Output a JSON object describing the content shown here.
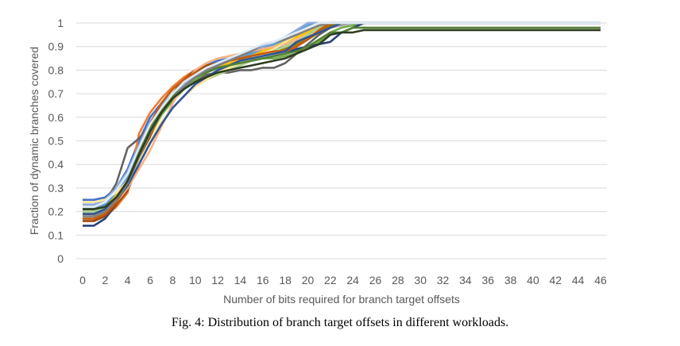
{
  "caption": "Fig. 4: Distribution of branch target offsets in different workloads.",
  "chart_data": {
    "type": "line",
    "title": "",
    "xlabel": "Number of bits required for branch target offsets",
    "ylabel": "Fraction of dynamic branches covered",
    "xlim": [
      0,
      46
    ],
    "ylim": [
      0,
      1
    ],
    "x_ticks": [
      0,
      2,
      4,
      6,
      8,
      10,
      12,
      14,
      16,
      18,
      20,
      22,
      24,
      26,
      28,
      30,
      32,
      34,
      36,
      38,
      40,
      42,
      44,
      46
    ],
    "y_ticks": [
      0,
      0.1,
      0.2,
      0.3,
      0.4,
      0.5,
      0.6,
      0.7,
      0.8,
      0.9,
      1
    ],
    "y_tick_labels": [
      "0",
      "0.1",
      "0.2",
      "0.3",
      "0.4",
      "0.5",
      "0.6",
      "0.7",
      "0.8",
      "0.9",
      "1"
    ],
    "grid": "horizontal",
    "legend": "none",
    "x": [
      0,
      1,
      2,
      3,
      4,
      5,
      6,
      7,
      8,
      9,
      10,
      11,
      12,
      13,
      14,
      15,
      16,
      17,
      18,
      19,
      20,
      21,
      22,
      23,
      24,
      25,
      26,
      46
    ],
    "series": [
      {
        "color": "#4472C4",
        "values": [
          0.25,
          0.25,
          0.26,
          0.3,
          0.38,
          0.5,
          0.6,
          0.66,
          0.72,
          0.76,
          0.79,
          0.82,
          0.84,
          0.85,
          0.86,
          0.88,
          0.9,
          0.9,
          0.92,
          0.96,
          1.0,
          1.0,
          1.0,
          1.0,
          1.0,
          1.0,
          1.0,
          1.0
        ]
      },
      {
        "color": "#ED7D31",
        "values": [
          0.16,
          0.16,
          0.18,
          0.22,
          0.28,
          0.53,
          0.62,
          0.68,
          0.73,
          0.77,
          0.8,
          0.82,
          0.83,
          0.84,
          0.85,
          0.86,
          0.87,
          0.88,
          0.9,
          0.92,
          0.94,
          0.97,
          1.0,
          1.0,
          1.0,
          1.0,
          1.0,
          1.0
        ]
      },
      {
        "color": "#A5A5A5",
        "values": [
          0.2,
          0.2,
          0.22,
          0.27,
          0.34,
          0.44,
          0.54,
          0.62,
          0.68,
          0.73,
          0.77,
          0.8,
          0.82,
          0.84,
          0.85,
          0.87,
          0.88,
          0.89,
          0.9,
          0.92,
          0.94,
          0.96,
          0.98,
          0.99,
          1.0,
          1.0,
          1.0,
          1.0
        ]
      },
      {
        "color": "#FFC000",
        "values": [
          0.22,
          0.22,
          0.23,
          0.27,
          0.33,
          0.42,
          0.52,
          0.61,
          0.67,
          0.72,
          0.76,
          0.79,
          0.81,
          0.83,
          0.84,
          0.86,
          0.88,
          0.9,
          0.92,
          0.94,
          0.96,
          0.98,
          1.0,
          1.0,
          1.0,
          1.0,
          1.0,
          1.0
        ]
      },
      {
        "color": "#5B9BD5",
        "values": [
          0.21,
          0.21,
          0.23,
          0.28,
          0.35,
          0.46,
          0.56,
          0.63,
          0.69,
          0.74,
          0.77,
          0.8,
          0.82,
          0.84,
          0.86,
          0.87,
          0.89,
          0.91,
          0.93,
          0.96,
          0.99,
          1.0,
          1.0,
          1.0,
          1.0,
          1.0,
          1.0,
          1.0
        ]
      },
      {
        "color": "#70AD47",
        "values": [
          0.17,
          0.17,
          0.19,
          0.24,
          0.31,
          0.43,
          0.53,
          0.61,
          0.67,
          0.72,
          0.76,
          0.79,
          0.81,
          0.82,
          0.83,
          0.84,
          0.85,
          0.85,
          0.86,
          0.87,
          0.89,
          0.92,
          0.96,
          0.98,
          0.99,
          1.0,
          1.0,
          1.0
        ]
      },
      {
        "color": "#264478",
        "values": [
          0.14,
          0.14,
          0.17,
          0.23,
          0.32,
          0.44,
          0.55,
          0.63,
          0.69,
          0.73,
          0.77,
          0.8,
          0.81,
          0.82,
          0.83,
          0.84,
          0.85,
          0.86,
          0.87,
          0.89,
          0.9,
          0.91,
          0.92,
          0.96,
          0.98,
          1.0,
          1.0,
          1.0
        ]
      },
      {
        "color": "#9E480E",
        "values": [
          0.16,
          0.16,
          0.18,
          0.23,
          0.29,
          0.4,
          0.52,
          0.63,
          0.7,
          0.76,
          0.8,
          0.82,
          0.83,
          0.84,
          0.85,
          0.86,
          0.87,
          0.87,
          0.88,
          0.9,
          0.93,
          0.97,
          1.0,
          1.0,
          1.0,
          1.0,
          1.0,
          1.0
        ]
      },
      {
        "color": "#636363",
        "values": [
          0.22,
          0.22,
          0.24,
          0.32,
          0.47,
          0.51,
          0.57,
          0.63,
          0.68,
          0.72,
          0.75,
          0.78,
          0.79,
          0.79,
          0.8,
          0.8,
          0.81,
          0.81,
          0.83,
          0.87,
          0.91,
          0.95,
          0.98,
          1.0,
          1.0,
          1.0,
          1.0,
          1.0
        ]
      },
      {
        "color": "#997300",
        "values": [
          0.19,
          0.19,
          0.21,
          0.26,
          0.33,
          0.45,
          0.56,
          0.64,
          0.7,
          0.74,
          0.78,
          0.81,
          0.83,
          0.84,
          0.85,
          0.86,
          0.87,
          0.88,
          0.89,
          0.91,
          0.93,
          0.96,
          0.99,
          1.0,
          1.0,
          1.0,
          1.0,
          1.0
        ]
      },
      {
        "color": "#F4B183",
        "values": [
          0.18,
          0.18,
          0.2,
          0.24,
          0.3,
          0.38,
          0.46,
          0.56,
          0.66,
          0.74,
          0.8,
          0.83,
          0.85,
          0.86,
          0.87,
          0.88,
          0.89,
          0.9,
          0.91,
          0.93,
          0.95,
          0.97,
          1.0,
          1.0,
          1.0,
          1.0,
          1.0,
          1.0
        ]
      },
      {
        "color": "#8FAADC",
        "values": [
          0.23,
          0.23,
          0.25,
          0.3,
          0.37,
          0.48,
          0.58,
          0.65,
          0.7,
          0.74,
          0.77,
          0.8,
          0.82,
          0.84,
          0.86,
          0.88,
          0.9,
          0.92,
          0.94,
          0.97,
          1.0,
          1.0,
          1.0,
          1.0,
          1.0,
          1.0,
          1.0,
          1.0
        ]
      },
      {
        "color": "#A9D18E",
        "values": [
          0.2,
          0.2,
          0.22,
          0.26,
          0.32,
          0.41,
          0.5,
          0.58,
          0.64,
          0.69,
          0.73,
          0.76,
          0.78,
          0.8,
          0.82,
          0.84,
          0.86,
          0.88,
          0.9,
          0.92,
          0.95,
          0.98,
          1.0,
          1.0,
          1.0,
          1.0,
          1.0,
          1.0
        ]
      },
      {
        "color": "#FFE699",
        "values": [
          0.24,
          0.24,
          0.25,
          0.28,
          0.33,
          0.41,
          0.5,
          0.58,
          0.64,
          0.69,
          0.73,
          0.76,
          0.79,
          0.81,
          0.83,
          0.85,
          0.87,
          0.89,
          0.92,
          0.95,
          0.98,
          1.0,
          1.0,
          1.0,
          1.0,
          1.0,
          1.0,
          1.0
        ]
      },
      {
        "color": "#C55A11",
        "values": [
          0.17,
          0.17,
          0.19,
          0.24,
          0.32,
          0.45,
          0.57,
          0.66,
          0.72,
          0.76,
          0.79,
          0.81,
          0.83,
          0.84,
          0.85,
          0.86,
          0.87,
          0.88,
          0.88,
          0.9,
          0.93,
          0.97,
          1.0,
          1.0,
          1.0,
          1.0,
          1.0,
          1.0
        ]
      },
      {
        "color": "#2F5597",
        "values": [
          0.19,
          0.19,
          0.21,
          0.25,
          0.31,
          0.4,
          0.49,
          0.57,
          0.64,
          0.69,
          0.74,
          0.77,
          0.8,
          0.82,
          0.84,
          0.85,
          0.86,
          0.87,
          0.88,
          0.92,
          0.94,
          0.96,
          0.98,
          1.0,
          1.0,
          1.0,
          1.0,
          1.0
        ]
      },
      {
        "color": "#548235",
        "values": [
          0.21,
          0.21,
          0.22,
          0.26,
          0.33,
          0.45,
          0.55,
          0.63,
          0.69,
          0.73,
          0.77,
          0.79,
          0.81,
          0.82,
          0.83,
          0.84,
          0.85,
          0.86,
          0.87,
          0.88,
          0.9,
          0.93,
          0.96,
          0.96,
          0.98,
          0.98,
          0.98,
          0.98
        ]
      },
      {
        "color": "#7F7F7F",
        "values": [
          0.18,
          0.18,
          0.2,
          0.25,
          0.32,
          0.43,
          0.53,
          0.62,
          0.68,
          0.73,
          0.77,
          0.8,
          0.82,
          0.84,
          0.86,
          0.88,
          0.91,
          0.92,
          0.93,
          0.95,
          0.97,
          0.99,
          1.0,
          1.0,
          1.0,
          1.0,
          1.0,
          1.0
        ]
      },
      {
        "color": "#2E3D22",
        "values": [
          0.21,
          0.21,
          0.22,
          0.26,
          0.33,
          0.44,
          0.54,
          0.62,
          0.68,
          0.72,
          0.75,
          0.77,
          0.79,
          0.8,
          0.81,
          0.82,
          0.83,
          0.84,
          0.85,
          0.87,
          0.89,
          0.91,
          0.95,
          0.96,
          0.96,
          0.97,
          0.97,
          0.97
        ]
      },
      {
        "color": "#DEEBF7",
        "values": [
          0.22,
          0.22,
          0.24,
          0.29,
          0.36,
          0.47,
          0.57,
          0.64,
          0.7,
          0.75,
          0.78,
          0.81,
          0.83,
          0.85,
          0.87,
          0.89,
          0.91,
          0.92,
          0.94,
          0.96,
          0.98,
          1.0,
          1.0,
          1.0,
          1.0,
          1.0,
          1.0,
          1.0
        ]
      }
    ]
  }
}
